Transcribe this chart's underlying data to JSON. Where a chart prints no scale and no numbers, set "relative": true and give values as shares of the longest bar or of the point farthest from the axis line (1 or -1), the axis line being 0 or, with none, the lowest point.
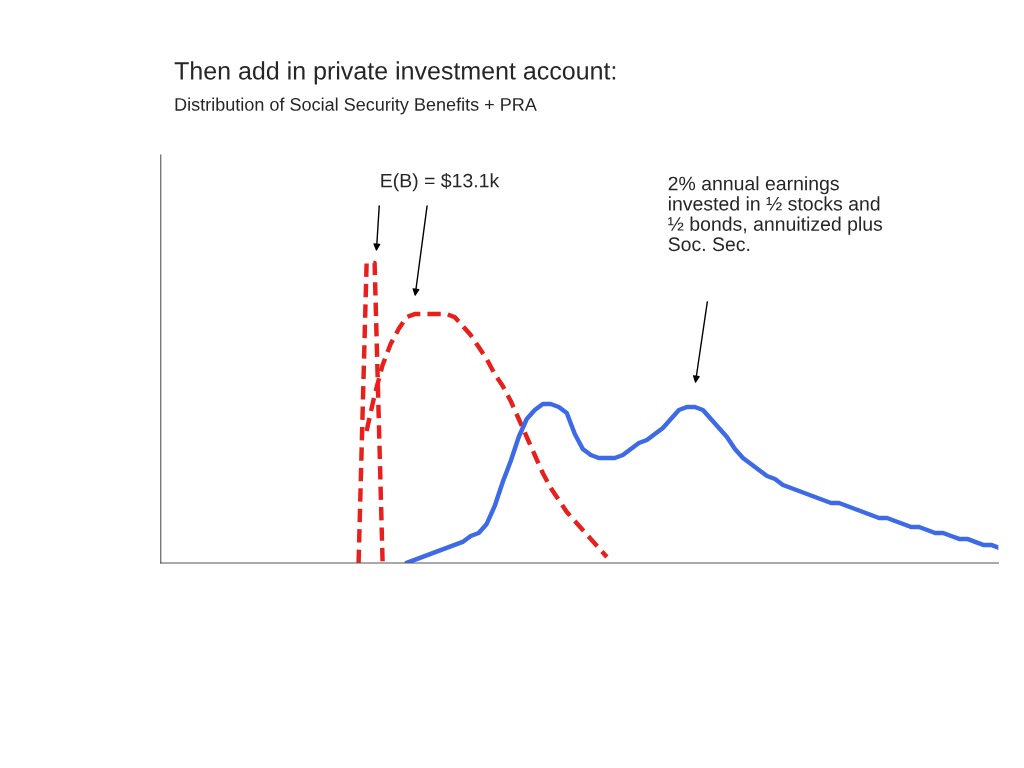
{
  "chart_data": {
    "type": "line",
    "title": "Then add in private investment account:",
    "subtitle": "Distribution of Social Security Benefits + PRA",
    "relative": true,
    "line_style": "solid",
    "marker": "none",
    "legend": false,
    "categories": [
      null,
      null,
      null,
      null,
      null,
      null,
      null,
      null,
      null,
      null,
      null,
      null,
      null,
      null,
      null,
      null,
      null,
      null,
      null,
      null,
      null,
      null,
      null,
      null,
      null,
      null,
      null,
      null,
      null,
      null,
      null,
      null,
      null,
      null,
      null,
      null,
      null,
      null,
      null,
      null,
      null,
      null,
      null,
      null,
      null,
      null,
      null,
      null,
      null,
      null,
      null,
      null,
      null,
      null,
      null,
      null,
      null,
      null,
      null,
      null,
      null,
      null,
      null,
      null,
      null,
      null,
      null,
      null,
      null,
      null,
      null,
      null,
      null,
      null,
      null,
      null,
      null,
      null,
      null,
      null,
      null
    ],
    "series": [
      {
        "color": "#e8201c",
        "line_style": "dashed",
        "values": [
          0,
          1,
          1,
          0,
          null,
          null,
          null,
          null,
          null,
          null,
          null,
          null,
          null,
          null,
          null,
          null,
          null,
          null,
          null,
          null,
          null,
          null,
          null,
          null,
          null,
          null,
          null,
          null,
          null,
          null,
          null,
          null,
          null,
          null,
          null,
          null,
          null,
          null,
          null,
          null,
          null,
          null,
          null,
          null,
          null,
          null,
          null,
          null,
          null,
          null,
          null,
          null,
          null,
          null,
          null,
          null,
          null,
          null,
          null,
          null,
          null,
          null,
          null,
          null,
          null,
          null,
          null,
          null,
          null,
          null,
          null,
          null,
          null,
          null,
          null,
          null,
          null,
          null,
          null,
          null,
          null
        ]
      },
      {
        "color": "#e8201c",
        "line_style": "dashed",
        "values": [
          null,
          0.44,
          0.56,
          0.66,
          0.73,
          0.78,
          0.82,
          0.83,
          0.83,
          0.83,
          0.83,
          0.83,
          0.82,
          0.79,
          0.76,
          0.72,
          0.68,
          0.63,
          0.59,
          0.54,
          0.48,
          0.42,
          0.36,
          0.3,
          0.25,
          0.21,
          0.17,
          0.14,
          0.11,
          0.08,
          0.05,
          0.02,
          null,
          null,
          null,
          null,
          null,
          null,
          null,
          null,
          null,
          null,
          null,
          null,
          null,
          null,
          null,
          null,
          null,
          null,
          null,
          null,
          null,
          null,
          null,
          null,
          null,
          null,
          null,
          null,
          null,
          null,
          null,
          null,
          null,
          null,
          null,
          null,
          null,
          null,
          null,
          null,
          null,
          null,
          null,
          null,
          null,
          null,
          null,
          null,
          null
        ]
      },
      {
        "color": "#3d6be8",
        "values": [
          null,
          null,
          null,
          null,
          null,
          null,
          0,
          0.01,
          0.02,
          0.03,
          0.04,
          0.05,
          0.06,
          0.07,
          0.09,
          0.1,
          0.13,
          0.19,
          0.27,
          0.34,
          0.42,
          0.48,
          0.51,
          0.53,
          0.53,
          0.52,
          0.5,
          0.43,
          0.38,
          0.36,
          0.35,
          0.35,
          0.35,
          0.36,
          0.38,
          0.4,
          0.41,
          0.43,
          0.45,
          0.48,
          0.51,
          0.52,
          0.52,
          0.51,
          0.48,
          0.45,
          0.42,
          0.38,
          0.35,
          0.33,
          0.31,
          0.29,
          0.28,
          0.26,
          0.25,
          0.24,
          0.23,
          0.22,
          0.21,
          0.2,
          0.2,
          0.19,
          0.18,
          0.17,
          0.16,
          0.15,
          0.15,
          0.14,
          0.13,
          0.12,
          0.12,
          0.11,
          0.1,
          0.1,
          0.09,
          0.08,
          0.08,
          0.07,
          0.06,
          0.06,
          0.05
        ]
      }
    ],
    "annotations": [
      "E(B) = $13.1k",
      "2% annual earnings\ninvested in ½ stocks and\n½ bonds, annuitized plus\nSoc. Sec."
    ]
  }
}
